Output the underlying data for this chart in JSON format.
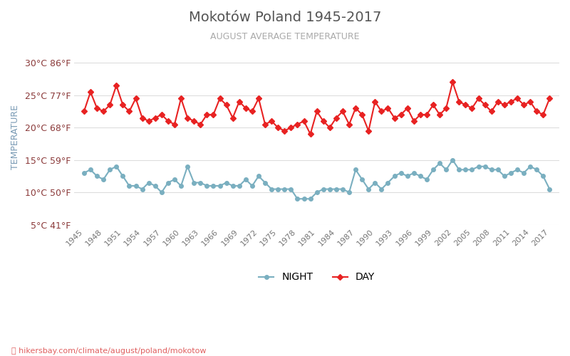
{
  "title": "Mokotów Poland 1945-2017",
  "subtitle": "AUGUST AVERAGE TEMPERATURE",
  "ylabel": "TEMPERATURE",
  "background_color": "#ffffff",
  "title_color": "#555555",
  "subtitle_color": "#aaaaaa",
  "ylabel_color": "#7a9bb5",
  "grid_color": "#dddddd",
  "years": [
    1945,
    1946,
    1947,
    1948,
    1949,
    1950,
    1951,
    1952,
    1953,
    1954,
    1955,
    1956,
    1957,
    1958,
    1959,
    1960,
    1961,
    1962,
    1963,
    1964,
    1965,
    1966,
    1967,
    1968,
    1969,
    1970,
    1971,
    1972,
    1973,
    1974,
    1975,
    1976,
    1977,
    1978,
    1979,
    1980,
    1981,
    1982,
    1983,
    1984,
    1985,
    1986,
    1987,
    1988,
    1989,
    1990,
    1991,
    1992,
    1993,
    1994,
    1995,
    1996,
    1997,
    1998,
    1999,
    2000,
    2001,
    2002,
    2003,
    2004,
    2005,
    2006,
    2007,
    2008,
    2009,
    2010,
    2011,
    2012,
    2013,
    2014,
    2015,
    2016,
    2017
  ],
  "day_temps": [
    22.5,
    25.5,
    23.0,
    22.5,
    23.5,
    26.5,
    23.5,
    22.5,
    24.5,
    21.5,
    21.0,
    21.5,
    22.0,
    21.0,
    20.5,
    24.5,
    21.5,
    21.0,
    20.5,
    22.0,
    22.0,
    24.5,
    23.5,
    21.5,
    24.0,
    23.0,
    22.5,
    24.5,
    20.5,
    21.0,
    20.0,
    19.5,
    20.0,
    20.5,
    21.0,
    19.0,
    22.5,
    21.0,
    20.0,
    21.5,
    22.5,
    20.5,
    23.0,
    22.0,
    19.5,
    24.0,
    22.5,
    23.0,
    21.5,
    22.0,
    23.0,
    21.0,
    22.0,
    22.0,
    23.5,
    22.0,
    23.0,
    27.0,
    24.0,
    23.5,
    23.0,
    24.5,
    23.5,
    22.5,
    24.0,
    23.5,
    24.0,
    24.5,
    23.5,
    24.0,
    22.5,
    22.0,
    24.5
  ],
  "night_temps": [
    13.0,
    13.5,
    12.5,
    12.0,
    13.5,
    14.0,
    12.5,
    11.0,
    11.0,
    10.5,
    11.5,
    11.0,
    10.0,
    11.5,
    12.0,
    11.0,
    14.0,
    11.5,
    11.5,
    11.0,
    11.0,
    11.0,
    11.5,
    11.0,
    11.0,
    12.0,
    11.0,
    12.5,
    11.5,
    10.5,
    10.5,
    10.5,
    10.5,
    9.0,
    9.0,
    9.0,
    10.0,
    10.5,
    10.5,
    10.5,
    10.5,
    10.0,
    13.5,
    12.0,
    10.5,
    11.5,
    10.5,
    11.5,
    12.5,
    13.0,
    12.5,
    13.0,
    12.5,
    12.0,
    13.5,
    14.5,
    13.5,
    15.0,
    13.5,
    13.5,
    13.5,
    14.0,
    14.0,
    13.5,
    13.5,
    12.5,
    13.0,
    13.5,
    13.0,
    14.0,
    13.5,
    12.5,
    10.5
  ],
  "day_color": "#e82222",
  "night_color": "#7aafc0",
  "day_marker": "D",
  "night_marker": "o",
  "marker_size": 4,
  "line_width": 1.5,
  "ylim": [
    5,
    32
  ],
  "yticks_c": [
    5,
    10,
    15,
    20,
    25,
    30
  ],
  "yticks_f": [
    41,
    50,
    59,
    68,
    77,
    86
  ],
  "xtick_years": [
    1945,
    1948,
    1951,
    1954,
    1957,
    1960,
    1963,
    1966,
    1969,
    1972,
    1975,
    1978,
    1981,
    1984,
    1987,
    1990,
    1993,
    1996,
    1999,
    2002,
    2005,
    2008,
    2011,
    2014,
    2017
  ],
  "footer_text": "hikersbay.com/climate/august/poland/mokotow",
  "footer_color": "#e06060",
  "legend_night": "NIGHT",
  "legend_day": "DAY"
}
